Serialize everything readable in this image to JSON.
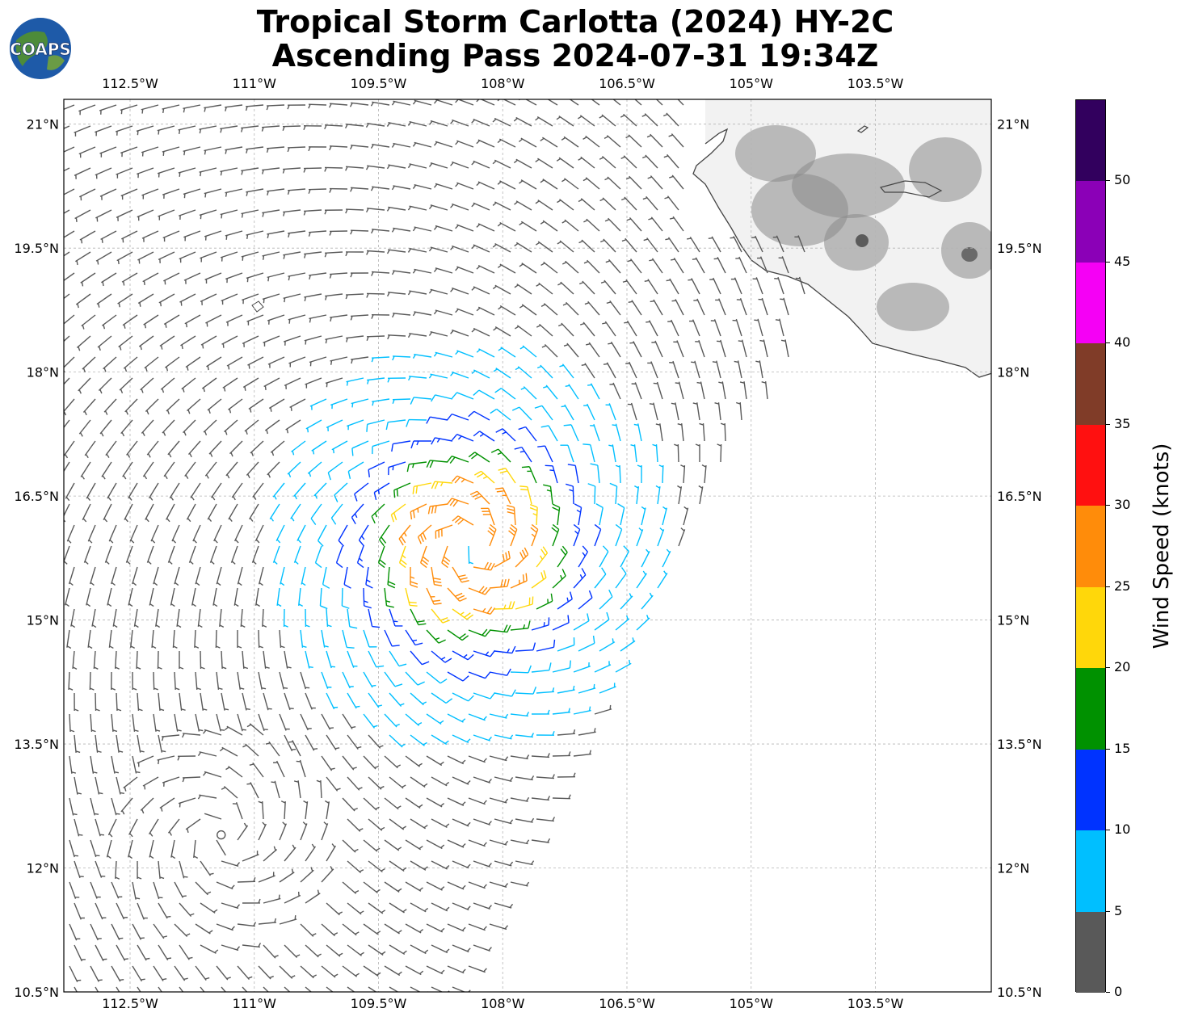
{
  "title": {
    "line1": "Tropical Storm Carlotta (2024) HY-2C",
    "line2": "Ascending Pass 2024-07-31 19:34Z"
  },
  "logo": {
    "text": "COAPS"
  },
  "axes": {
    "lon_ticks": [
      "112.5°W",
      "111°W",
      "109.5°W",
      "108°W",
      "106.5°W",
      "105°W",
      "103.5°W"
    ],
    "lat_ticks": [
      "21°N",
      "19.5°N",
      "18°N",
      "16.5°N",
      "15°N",
      "13.5°N",
      "12°N",
      "10.5°N"
    ],
    "lon_range": [
      -113.3,
      -102.1
    ],
    "lat_range": [
      10.5,
      21.3
    ]
  },
  "colorbar": {
    "title": "Wind Speed (knots)",
    "ticks": [
      "0",
      "5",
      "10",
      "15",
      "20",
      "25",
      "30",
      "35",
      "40",
      "45",
      "50"
    ],
    "bins": [
      {
        "min": 0,
        "max": 5,
        "color": "#595959"
      },
      {
        "min": 5,
        "max": 10,
        "color": "#00bfff"
      },
      {
        "min": 10,
        "max": 15,
        "color": "#0033ff"
      },
      {
        "min": 15,
        "max": 20,
        "color": "#009100"
      },
      {
        "min": 20,
        "max": 25,
        "color": "#ffd70a"
      },
      {
        "min": 25,
        "max": 30,
        "color": "#ff8c0a"
      },
      {
        "min": 30,
        "max": 35,
        "color": "#ff1010"
      },
      {
        "min": 35,
        "max": 40,
        "color": "#803c28"
      },
      {
        "min": 40,
        "max": 45,
        "color": "#f500f5"
      },
      {
        "min": 45,
        "max": 50,
        "color": "#8b00b7"
      },
      {
        "min": 50,
        "max": 55,
        "color": "#32005e"
      }
    ]
  },
  "storm": {
    "center": {
      "lon": -108.4,
      "lat": 15.9
    },
    "secondary_low": {
      "lon": -111.4,
      "lat": 12.4
    }
  },
  "colors": {
    "coastline": "#444444",
    "land_light": "#f2f2f2",
    "land_dark": "#8a8a8a",
    "grid": "#b5b5b5"
  }
}
